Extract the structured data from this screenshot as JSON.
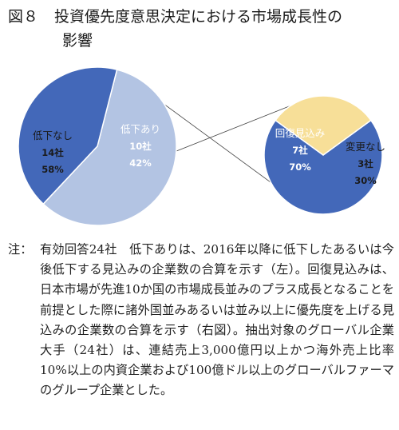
{
  "title": {
    "figure_no": "図８",
    "line1": "投資優先度意思決定における市場成長性の",
    "line2": "影響"
  },
  "chart_data": [
    {
      "type": "pie",
      "position": "left",
      "slices": [
        {
          "label": "低下なし",
          "count": "14社",
          "percent": "58%",
          "value": 58,
          "color": "#b3c4e3"
        },
        {
          "label": "低下あり",
          "count": "10社",
          "percent": "42%",
          "value": 42,
          "color": "#4368b9"
        }
      ]
    },
    {
      "type": "pie",
      "position": "right",
      "slices": [
        {
          "label": "回復見込み",
          "count": "7社",
          "percent": "70%",
          "value": 70,
          "color": "#4368b9"
        },
        {
          "label": "変更なし",
          "count": "3社",
          "percent": "30%",
          "value": 30,
          "color": "#f7df98"
        }
      ]
    }
  ],
  "note": {
    "mark": "注：",
    "text": "有効回答24社　低下ありは、2016年以降に低下したあるいは今後低下する見込みの企業数の合算を示す（左）。回復見込みは、日本市場が先進10か国の市場成長並みのプラス成長となることを前提とした際に諸外国並みあるいは並み以上に優先度を上げる見込みの企業数の合算を示す（右図）。抽出対象のグローバル企業大手（24社）は、連結売上3,000億円以上かつ海外売上比率10%以上の内資企業および100億ドル以上のグローバルファーマのグループ企業とした。"
  }
}
